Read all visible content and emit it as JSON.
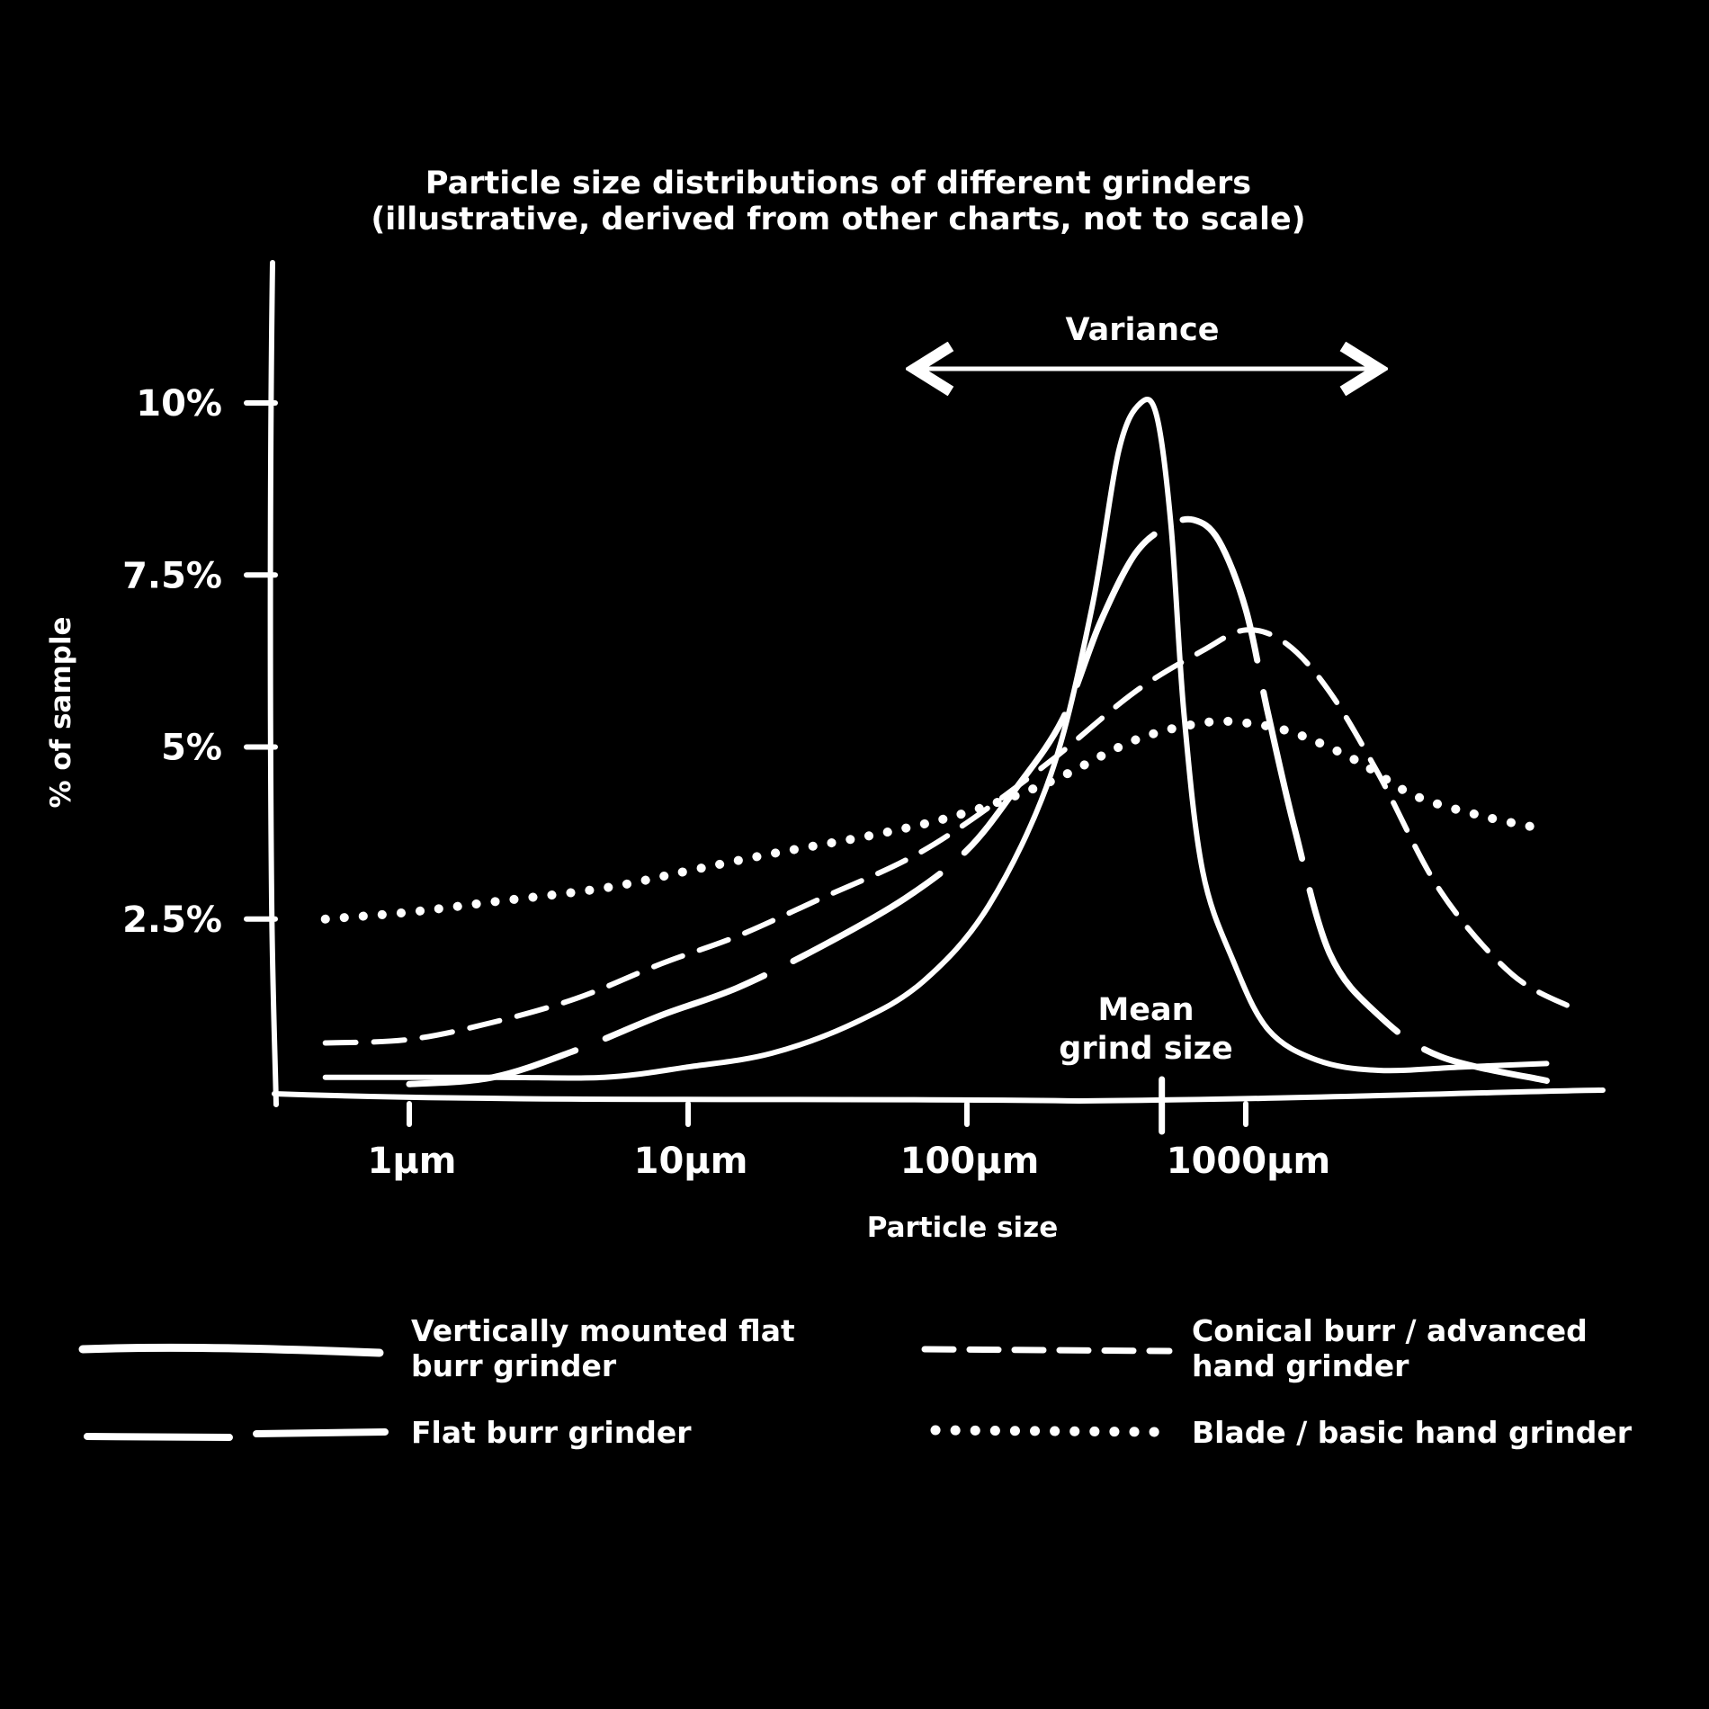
{
  "chart_data": {
    "type": "line",
    "title": "Particle size distributions of different grinders",
    "subtitle": "(illustrative, derived from other charts, not to scale)",
    "xlabel": "Particle size",
    "ylabel": "% of sample",
    "x_scale": "log",
    "x_ticks": [
      1,
      10,
      100,
      1000
    ],
    "x_tick_labels": [
      "1μm",
      "10μm",
      "100μm",
      "1000μm"
    ],
    "y_ticks": [
      2.5,
      5,
      7.5,
      10
    ],
    "y_tick_labels": [
      "2.5%",
      "5%",
      "7.5%",
      "10%"
    ],
    "xlim": [
      0.25,
      15000
    ],
    "ylim": [
      0,
      12
    ],
    "grid": false,
    "legend_position": "bottom",
    "color": "#ffffff",
    "series": [
      {
        "name": "Vertically mounted flat burr grinder",
        "style": "solid-thick",
        "x": [
          0.5,
          2,
          5,
          10,
          20,
          40,
          70,
          120,
          200,
          280,
          350,
          420,
          480,
          540,
          600,
          700,
          900,
          1200,
          1800,
          3000,
          6000,
          12000
        ],
        "y": [
          0.2,
          0.2,
          0.2,
          0.35,
          0.55,
          1.0,
          1.6,
          2.7,
          4.6,
          7.0,
          9.3,
          10.0,
          9.8,
          8.2,
          5.5,
          3.2,
          1.9,
          0.9,
          0.45,
          0.3,
          0.35,
          0.4
        ]
      },
      {
        "name": "Flat burr grinder",
        "style": "long-dash",
        "x": [
          1,
          2,
          4,
          8,
          15,
          30,
          60,
          100,
          150,
          220,
          300,
          400,
          520,
          650,
          800,
          1000,
          1200,
          1500,
          2000,
          3000,
          5000,
          12000
        ],
        "y": [
          0.1,
          0.2,
          0.6,
          1.1,
          1.5,
          2.1,
          2.8,
          3.5,
          4.4,
          5.4,
          6.8,
          7.8,
          8.2,
          8.3,
          8.0,
          7.0,
          5.5,
          3.8,
          2.0,
          1.1,
          0.5,
          0.15
        ]
      },
      {
        "name": "Conical burr / advanced hand grinder",
        "style": "dash",
        "x": [
          0.5,
          1,
          2,
          4,
          8,
          15,
          30,
          60,
          100,
          200,
          400,
          700,
          1000,
          1400,
          2000,
          3000,
          5000,
          9000,
          15000
        ],
        "y": [
          0.7,
          0.75,
          1.0,
          1.35,
          1.85,
          2.25,
          2.8,
          3.35,
          3.9,
          4.8,
          5.8,
          6.4,
          6.7,
          6.5,
          5.8,
          4.6,
          2.9,
          1.7,
          1.2
        ]
      },
      {
        "name": "Blade / basic hand grinder",
        "style": "dotted",
        "x": [
          0.5,
          1,
          2,
          5,
          10,
          20,
          50,
          100,
          200,
          400,
          700,
          1000,
          1500,
          2500,
          4000,
          7000,
          12000
        ],
        "y": [
          2.5,
          2.6,
          2.75,
          2.95,
          3.2,
          3.45,
          3.75,
          4.05,
          4.5,
          5.1,
          5.35,
          5.35,
          5.2,
          4.8,
          4.3,
          4.0,
          3.8
        ]
      }
    ]
  },
  "annotations": {
    "variance": "Variance",
    "mean_line1": "Mean",
    "mean_line2": "grind size",
    "mean_x": 500,
    "variance_range": [
      65,
      3000
    ]
  },
  "legend": [
    {
      "label_line1": "Vertically mounted flat",
      "label_line2": "burr grinder"
    },
    {
      "label_line1": "Conical burr / advanced",
      "label_line2": "hand grinder"
    },
    {
      "label_line1": "Flat burr grinder",
      "label_line2": ""
    },
    {
      "label_line1": "Blade / basic hand grinder",
      "label_line2": ""
    }
  ]
}
